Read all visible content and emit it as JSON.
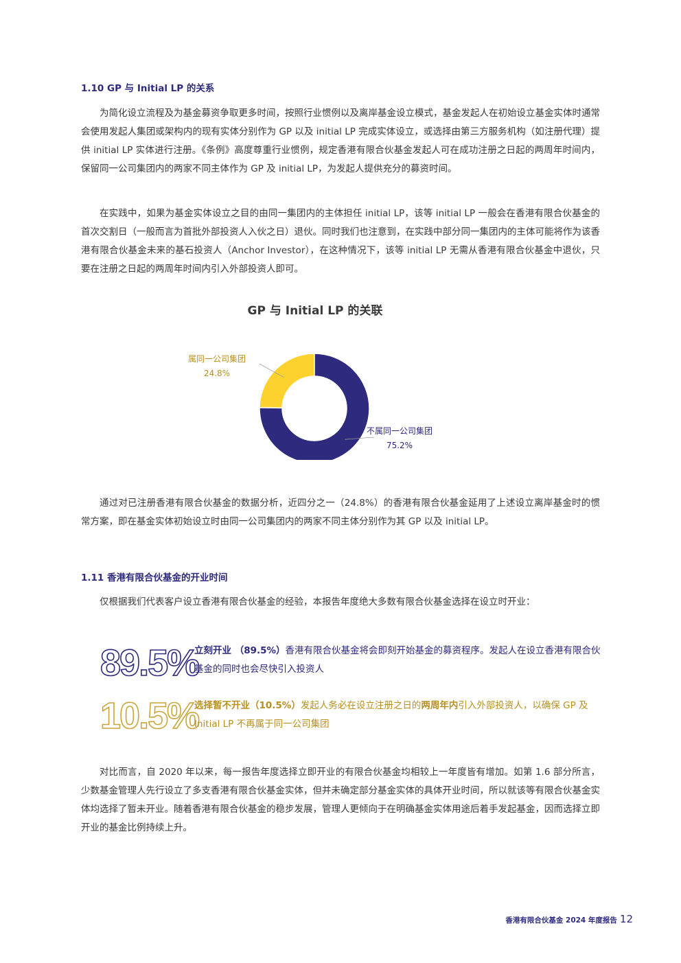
{
  "section_110": {
    "title": "1.10  GP 与 Initial LP 的关系",
    "p1": "为简化设立流程及为基金募资争取更多时间，按照行业惯例以及离岸基金设立模式，基金发起人在初始设立基金实体时通常会使用发起人集团或架构内的现有实体分别作为 GP 以及 initial LP 完成实体设立，或选择由第三方服务机构（如注册代理）提供 initial LP 实体进行注册。《条例》高度尊重行业惯例，规定香港有限合伙基金发起人可在成功注册之日起的两周年时间内，保留同一公司集团内的两家不同主体作为 GP 及 initial LP，为发起人提供充分的募资时间。",
    "p2": "在实践中，如果为基金实体设立之目的由同一集团内的主体担任 initial LP，该等 initial LP 一般会在香港有限合伙基金的首次交割日（一般而言为首批外部投资人入伙之日）退伙。同时我们也注意到，在实践中部分同一集团内的主体可能将作为该香港有限合伙基金未来的基石投资人（Anchor Investor），在这种情况下，该等 initial LP 无需从香港有限合伙基金中退伙，只要在注册之日起的两周年时间内引入外部投资人即可。",
    "p3": "通过对已注册香港有限合伙基金的数据分析，近四分之一（24.8%）的香港有限合伙基金延用了上述设立离岸基金时的惯常方案，即在基金实体初始设立时由同一公司集团内的两家不同主体分别作为其 GP 以及 initial LP。"
  },
  "chart_data": {
    "type": "pie",
    "variant": "donut",
    "title": "GP 与 Initial LP 的关联",
    "slices": [
      {
        "label": "属同一公司集团",
        "value": 24.8,
        "value_label": "24.8%",
        "color": "#fdd22f",
        "label_color": "#b8901e"
      },
      {
        "label": "不属同一公司集团",
        "value": 75.2,
        "value_label": "75.2%",
        "color": "#2e2a7e",
        "label_color": "#2e2a7e"
      }
    ]
  },
  "section_111": {
    "title": "1.11  香港有限合伙基金的开业时间",
    "intro": "仅根据我们代表客户设立香港有限合伙基金的经验，本报告年度绝大多数有限合伙基金选择在设立时开业：",
    "stat1": {
      "number": "89.5%",
      "bold": "立刻开业 （89.5%）",
      "text": "香港有限合伙基金将会即刻开始基金的募资程序。发起人在设立香港有限合伙基金的同时也会尽快引入投资人",
      "color": "#2e2a7e"
    },
    "stat2": {
      "number": "10.5%",
      "bold": "选择暂不开业（10.5%）",
      "text_a": "发起人务必在设立注册之日的",
      "bold2": "两周年内",
      "text_b": "引入外部投资人，以确保 GP 及 Initial LP 不再属于同一公司集团",
      "color": "#c9a53a"
    },
    "closing": "对比而言，自 2020 年以来，每一报告年度选择立即开业的有限合伙基金均相较上一年度皆有增加。如第 1.6 部分所言，少数基金管理人先行设立了多支香港有限合伙基金实体，但并未确定部分基金实体的具体开业时间，所以就该等有限合伙基金实体均选择了暂未开业。随着香港有限合伙基金的稳步发展，管理人更倾向于在明确基金实体用途后着手发起基金，因而选择立即开业的基金比例持续上升。"
  },
  "footer": {
    "report": "香港有限合伙基金 2024 年度报告",
    "page": "12"
  }
}
